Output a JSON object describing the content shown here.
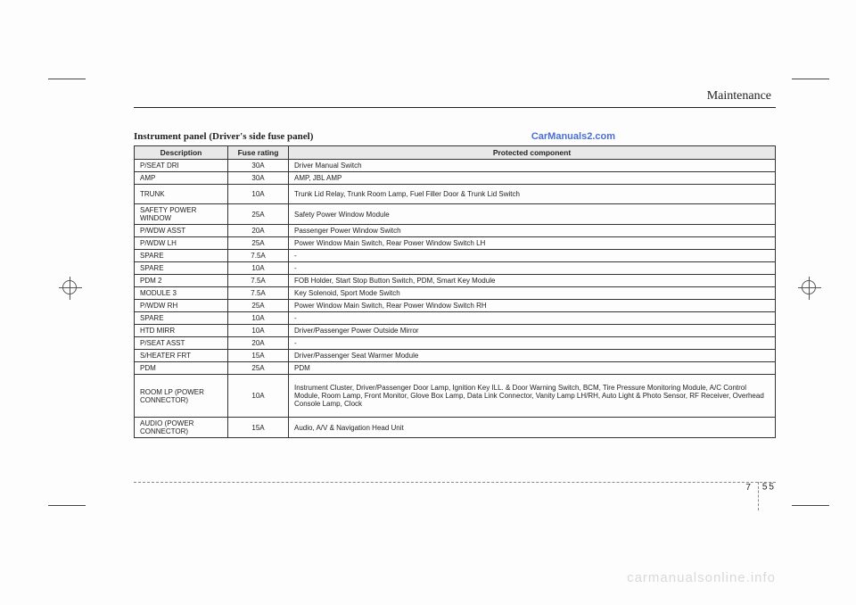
{
  "header": {
    "section": "Maintenance"
  },
  "title": "Instrument panel (Driver's side fuse panel)",
  "watermark": "CarManuals2.com",
  "site_watermark": "carmanualsonline.info",
  "page_number": {
    "chapter": "7",
    "page": "55"
  },
  "table": {
    "columns": [
      "Description",
      "Fuse rating",
      "Protected component"
    ],
    "rows": [
      {
        "desc": "P/SEAT DRI",
        "rating": "30A",
        "comp": "Driver Manual Switch",
        "cls": ""
      },
      {
        "desc": "AMP",
        "rating": "30A",
        "comp": "AMP, JBL AMP",
        "cls": ""
      },
      {
        "desc": "TRUNK",
        "rating": "10A",
        "comp": "Trunk Lid Relay, Trunk Room Lamp, Fuel Filler Door & Trunk Lid Switch",
        "cls": "tall"
      },
      {
        "desc": "SAFETY POWER WINDOW",
        "rating": "25A",
        "comp": "Safety Power Window Module",
        "cls": "tall"
      },
      {
        "desc": "P/WDW ASST",
        "rating": "20A",
        "comp": "Passenger Power Window Switch",
        "cls": ""
      },
      {
        "desc": "P/WDW LH",
        "rating": "25A",
        "comp": "Power Window Main Switch, Rear Power Window Switch LH",
        "cls": ""
      },
      {
        "desc": "SPARE",
        "rating": "7.5A",
        "comp": "-",
        "cls": ""
      },
      {
        "desc": "SPARE",
        "rating": "10A",
        "comp": "-",
        "cls": ""
      },
      {
        "desc": "PDM 2",
        "rating": "7.5A",
        "comp": "FOB Holder, Start Stop Button Switch, PDM, Smart Key Module",
        "cls": ""
      },
      {
        "desc": "MODULE 3",
        "rating": "7.5A",
        "comp": "Key Solenoid, Sport Mode Switch",
        "cls": ""
      },
      {
        "desc": "P/WDW RH",
        "rating": "25A",
        "comp": "Power Window Main Switch, Rear Power Window Switch RH",
        "cls": ""
      },
      {
        "desc": "SPARE",
        "rating": "10A",
        "comp": "-",
        "cls": ""
      },
      {
        "desc": "HTD MIRR",
        "rating": "10A",
        "comp": "Driver/Passenger Power Outside Mirror",
        "cls": ""
      },
      {
        "desc": "P/SEAT ASST",
        "rating": "20A",
        "comp": "-",
        "cls": ""
      },
      {
        "desc": "S/HEATER FRT",
        "rating": "15A",
        "comp": "Driver/Passenger Seat Warmer Module",
        "cls": ""
      },
      {
        "desc": "PDM",
        "rating": "25A",
        "comp": "PDM",
        "cls": ""
      },
      {
        "desc": "ROOM LP (POWER CONNECTOR)",
        "rating": "10A",
        "comp": "Instrument Cluster, Driver/Passenger Door Lamp, Ignition Key ILL. & Door Warning Switch, BCM, Tire Pressure Monitoring Module, A/C Control Module, Room Lamp, Front Monitor, Glove Box Lamp, Data Link Connector, Vanity Lamp LH/RH, Auto Light & Photo Sensor, RF Receiver, Overhead Console Lamp, Clock",
        "cls": "taller"
      },
      {
        "desc": "AUDIO (POWER CONNECTOR)",
        "rating": "15A",
        "comp": "Audio, A/V & Navigation Head Unit",
        "cls": "med"
      }
    ]
  }
}
